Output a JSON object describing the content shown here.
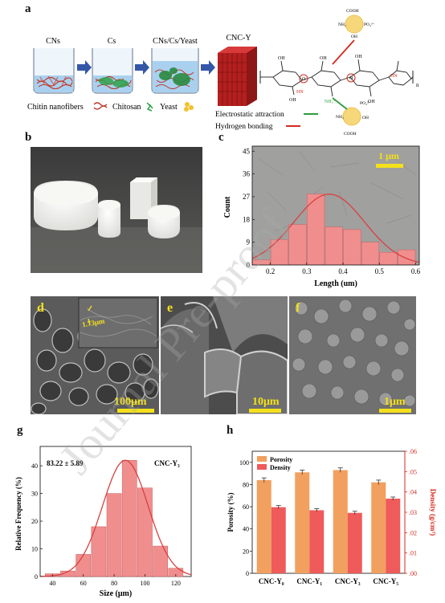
{
  "panel_a": {
    "letter": "a",
    "beaker_labels": [
      "CNs",
      "Cs",
      "CNs/Cs/Yeast"
    ],
    "product_label": "CNC-Y",
    "legend": {
      "chitin": "Chitin nanofibers",
      "chitosan": "Chitosan",
      "yeast": "Yeast",
      "electrostatic": "Electrostatic attraction",
      "hydrogen": "Hydrogen bonding"
    },
    "chem": {
      "cooh": "COOH",
      "nh2": "NH₂",
      "oh": "OH",
      "po4": "PO₄³⁻",
      "hn": "HN",
      "nh3": "NH₃⁺",
      "o": "O",
      "n": "n"
    },
    "colors": {
      "electrostatic": "#2a9d3a",
      "hydrogen": "#d42a1e"
    }
  },
  "panel_b": {
    "letter": "b"
  },
  "panel_c": {
    "letter": "c",
    "scalebar": "1 μm",
    "chart_data": {
      "type": "bar",
      "bin_centers": [
        0.175,
        0.225,
        0.275,
        0.325,
        0.375,
        0.425,
        0.475,
        0.525,
        0.575
      ],
      "values": [
        2,
        10,
        16,
        28,
        15,
        14,
        9,
        5,
        6
      ],
      "fit_curve": "normal",
      "xlabel": "Length (um)",
      "ylabel": "Count",
      "xticks": [
        "0.2",
        "0.3",
        "0.4",
        "0.5",
        "0.6"
      ],
      "yticks": [
        "0",
        "9",
        "18",
        "27",
        "36",
        "45"
      ],
      "xlim": [
        0.15,
        0.61
      ],
      "ylim": [
        0,
        47
      ],
      "bar_color": "#f08e8e",
      "curve_color": "#d94040"
    }
  },
  "panel_d": {
    "letter": "d",
    "scalebar": "100μm",
    "inset_label": "1.73μm"
  },
  "panel_e": {
    "letter": "e",
    "scalebar": "10μm"
  },
  "panel_f": {
    "letter": "f",
    "scalebar": "1μm"
  },
  "panel_g": {
    "letter": "g",
    "chart_data": {
      "type": "bar",
      "bin_centers": [
        40,
        50,
        60,
        70,
        80,
        90,
        100,
        110,
        120
      ],
      "values": [
        1,
        2,
        8,
        18,
        30,
        42,
        32,
        11,
        3
      ],
      "fit_curve": "normal",
      "annotation": "83.22 ± 5.89",
      "series_label": "CNC-Y₃",
      "xlabel": "Size (μm)",
      "ylabel": "Relative Frequency (%)",
      "xticks": [
        "40",
        "60",
        "80",
        "100",
        "120"
      ],
      "yticks": [
        "0",
        "10",
        "20",
        "30",
        "40"
      ],
      "xlim": [
        32,
        130
      ],
      "ylim": [
        0,
        47
      ],
      "bar_color": "#f08e8e",
      "curve_color": "#d94040"
    }
  },
  "panel_h": {
    "letter": "h",
    "chart_data": {
      "type": "bar",
      "categories": [
        "CNC-Y₀",
        "CNC-Y₁",
        "CNC-Y₃",
        "CNC-Y₅"
      ],
      "series": [
        {
          "name": "Porosity",
          "values": [
            84,
            91,
            93,
            82
          ],
          "errors": [
            2,
            2,
            2,
            2
          ],
          "axis": "left",
          "color": "#f2a05f"
        },
        {
          "name": "Density",
          "values": [
            0.0325,
            0.031,
            0.0297,
            0.0367
          ],
          "errors": [
            0.0008,
            0.0008,
            0.0008,
            0.0008
          ],
          "axis": "right",
          "color": "#ef5a5a"
        }
      ],
      "ylabel_left": "Porosity (%)",
      "ylabel_right": "Density (g/cm³)",
      "yticks_left": [
        "0",
        "20",
        "40",
        "60",
        "80",
        "100"
      ],
      "yticks_right": [
        ".00",
        ".01",
        ".02",
        ".03",
        ".04",
        ".05",
        ".06"
      ],
      "ylim_left": [
        0,
        110
      ],
      "ylim_right": [
        0,
        0.06
      ],
      "legend_position": "top-left",
      "right_axis_color": "#d42a1e"
    }
  },
  "watermark": "Journal Pre-proof"
}
